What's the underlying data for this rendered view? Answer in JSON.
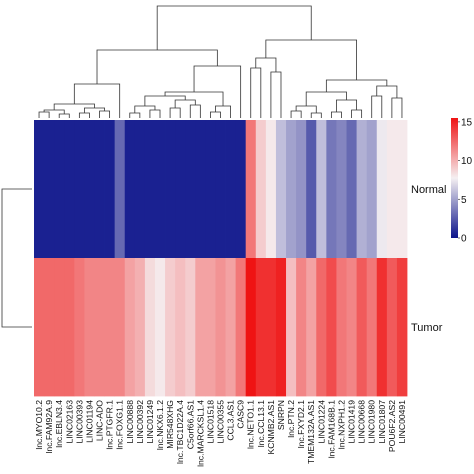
{
  "chart_data": {
    "type": "heatmap",
    "rows": [
      "Normal",
      "Tumor"
    ],
    "columns": [
      "lnc.MYO10.2",
      "lnc.FAM92A.9",
      "lnc.EBLN3.4",
      "LINC02163",
      "LINC00393",
      "LINC01194",
      "LINC-ADO",
      "lnc.PTGFR.1",
      "lnc.FOXG1.1",
      "LINC00888",
      "LINC00392",
      "LINC01249",
      "lnc.NKX6.1.2",
      "MIR548XHG",
      "lnc.TBC1D22A.4",
      "C5orf66.AS1",
      "lnc.MARCKSL1.4",
      "LINC01518",
      "LINC00355",
      "CCL3.AS1",
      "CASC9",
      "lnc.NETO1.1",
      "lnc.CCL13.1",
      "KCNMB2.AS1",
      "SNRPN",
      "lnc.PTN.2",
      "lnc.FXYD2.1",
      "TMEM132A.AS1",
      "LINC01224",
      "lnc.FAM168B.1",
      "lnc.NXPH1.2",
      "LINC01419",
      "LINC00668",
      "LINC01980",
      "LINC01807",
      "POU6F2.AS2",
      "LINC00491"
    ],
    "values": [
      [
        0.5,
        0.5,
        0.5,
        0.5,
        0.5,
        0.5,
        0.5,
        0.5,
        3.0,
        0.5,
        0.5,
        0.5,
        0.5,
        0.5,
        0.5,
        0.5,
        0.5,
        0.5,
        0.5,
        0.5,
        0.5,
        12.0,
        9.0,
        8.0,
        6.0,
        5.0,
        4.5,
        2.5,
        6.0,
        3.5,
        4.0,
        3.0,
        5.5,
        5.0,
        7.5,
        8.0,
        8.0
      ],
      [
        12.5,
        12.5,
        12.5,
        12.5,
        12.0,
        11.5,
        11.5,
        11.5,
        11.5,
        10.5,
        10.0,
        8.5,
        8.0,
        9.0,
        9.5,
        9.0,
        10.5,
        10.5,
        11.0,
        10.5,
        12.0,
        15.5,
        14.5,
        14.5,
        15.0,
        9.5,
        11.5,
        10.5,
        12.5,
        13.5,
        12.0,
        11.5,
        13.0,
        12.0,
        14.5,
        13.0,
        14.0
      ]
    ],
    "colorbar": {
      "ticks": [
        "15",
        "10",
        "5",
        "0"
      ],
      "min": 0,
      "max": 15.5,
      "colors": {
        "low": "#0b138a",
        "mid": "#f5f0f2",
        "high": "#ef1313"
      }
    },
    "column_dendrogram": true,
    "row_dendrogram": true
  }
}
